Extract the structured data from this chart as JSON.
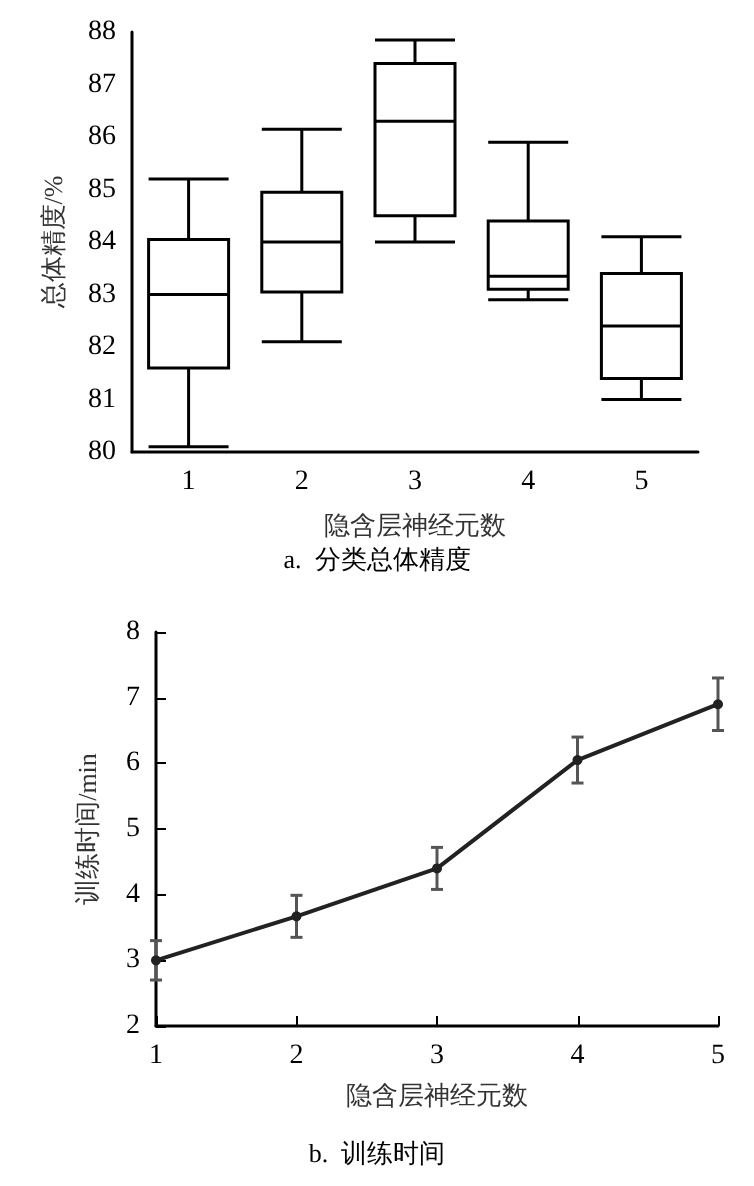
{
  "chart_data": [
    {
      "type": "box",
      "categories": [
        "1",
        "2",
        "3",
        "4",
        "5"
      ],
      "xlabel": "隐含层神经元数",
      "ylabel": "总体精度/%",
      "annotations": [
        "a.  分类总体精度"
      ],
      "ylim": [
        80,
        88
      ],
      "yticks": [
        80,
        81,
        82,
        83,
        84,
        85,
        86,
        87,
        88
      ],
      "grid": false,
      "color": "#000000",
      "boxes": [
        {
          "low": 80.1,
          "q1": 81.6,
          "median": 83.0,
          "q3": 84.05,
          "high": 85.2
        },
        {
          "low": 82.1,
          "q1": 83.05,
          "median": 84.0,
          "q3": 84.95,
          "high": 86.15
        },
        {
          "low": 84.0,
          "q1": 84.5,
          "median": 86.3,
          "q3": 87.4,
          "high": 87.85
        },
        {
          "low": 82.9,
          "q1": 83.1,
          "median": 83.35,
          "q3": 84.4,
          "high": 85.9
        },
        {
          "low": 81.0,
          "q1": 81.4,
          "median": 82.4,
          "q3": 83.4,
          "high": 84.1
        }
      ]
    },
    {
      "type": "line",
      "x": [
        1,
        2,
        3,
        4,
        5
      ],
      "xlabel": "隐含层神经元数",
      "ylabel": "训练时间/min",
      "annotations": [
        "b.  训练时间"
      ],
      "xlim": [
        1,
        5
      ],
      "xticks": [
        1,
        2,
        3,
        4,
        5
      ],
      "ylim": [
        2,
        8
      ],
      "yticks": [
        2,
        3,
        4,
        5,
        6,
        7,
        8
      ],
      "grid": false,
      "marker": "circle",
      "line_style": "solid",
      "series": [
        {
          "color": "#222222",
          "values": [
            3.0,
            3.67,
            4.4,
            6.05,
            6.9
          ],
          "errors": [
            0.3,
            0.32,
            0.32,
            0.35,
            0.4
          ]
        }
      ]
    }
  ]
}
